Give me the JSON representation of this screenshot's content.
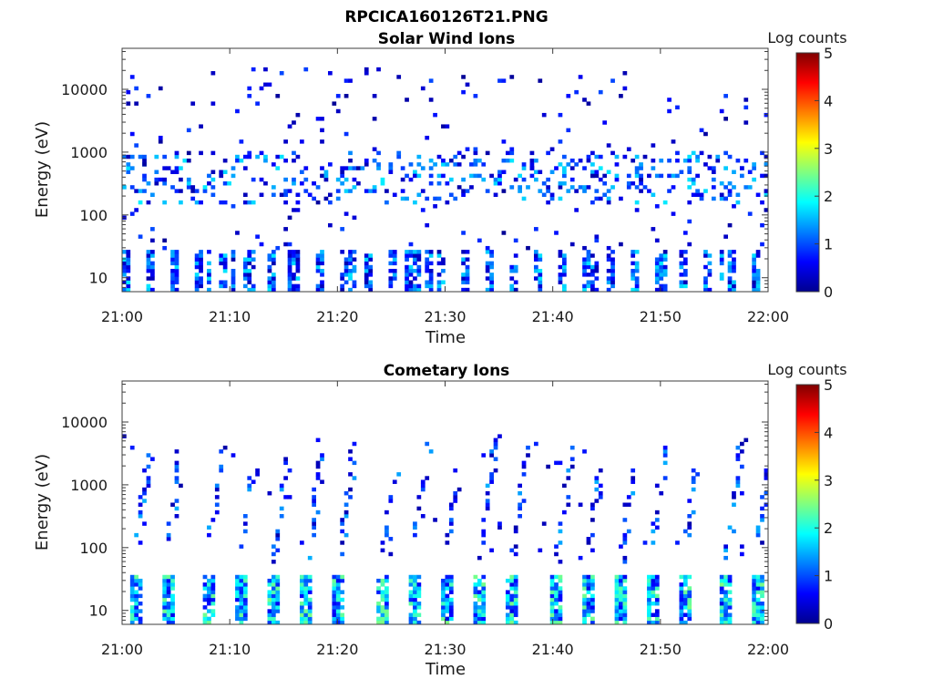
{
  "figure": {
    "filename_title": "RPCICA160126T21.PNG"
  },
  "chart_data": [
    {
      "type": "heatmap",
      "title": "Solar Wind Ions",
      "xlabel": "Time",
      "ylabel": "Energy (eV)",
      "x_ticks": [
        "21:00",
        "21:10",
        "21:20",
        "21:30",
        "21:40",
        "21:50",
        "22:00"
      ],
      "xlim": [
        "21:00",
        "22:00"
      ],
      "y_scale": "log",
      "y_ticks": [
        "10",
        "100",
        "1000",
        "10000"
      ],
      "ylim": [
        6,
        45000
      ],
      "colorbar": {
        "label": "Log counts",
        "ticks": [
          "0",
          "1",
          "2",
          "3",
          "4",
          "5"
        ],
        "range": [
          0,
          5
        ],
        "colormap": "jet"
      },
      "features": {
        "low_energy_band_ev": [
          6,
          25
        ],
        "low_energy_log_counts": [
          0.2,
          1.8
        ],
        "main_population_ev": [
          150,
          1000
        ],
        "main_population_log_counts": [
          0.2,
          1.8
        ],
        "sparse_background_ev": [
          30,
          20000
        ],
        "sparse_background_log_counts": [
          0.1,
          1.0
        ]
      }
    },
    {
      "type": "heatmap",
      "title": "Cometary Ions",
      "xlabel": "Time",
      "ylabel": "Energy (eV)",
      "x_ticks": [
        "21:00",
        "21:10",
        "21:20",
        "21:30",
        "21:40",
        "21:50",
        "22:00"
      ],
      "xlim": [
        "21:00",
        "22:00"
      ],
      "y_scale": "log",
      "y_ticks": [
        "10",
        "100",
        "1000",
        "10000"
      ],
      "ylim": [
        6,
        45000
      ],
      "colorbar": {
        "label": "Log counts",
        "ticks": [
          "0",
          "1",
          "2",
          "3",
          "4",
          "5"
        ],
        "range": [
          0,
          5
        ],
        "colormap": "jet"
      },
      "features": {
        "low_energy_band_ev": [
          6,
          35
        ],
        "low_energy_log_counts": [
          0.5,
          2.5
        ],
        "pulse_times": [
          "21:01",
          "21:04",
          "21:08",
          "21:11",
          "21:14",
          "21:17",
          "21:20",
          "21:24",
          "21:27",
          "21:30",
          "21:33",
          "21:36",
          "21:40",
          "21:43",
          "21:46",
          "21:49",
          "21:52",
          "21:56",
          "21:59"
        ],
        "streak_energy_ev": [
          60,
          6000
        ],
        "streak_log_counts": [
          0.2,
          1.5
        ]
      }
    }
  ]
}
